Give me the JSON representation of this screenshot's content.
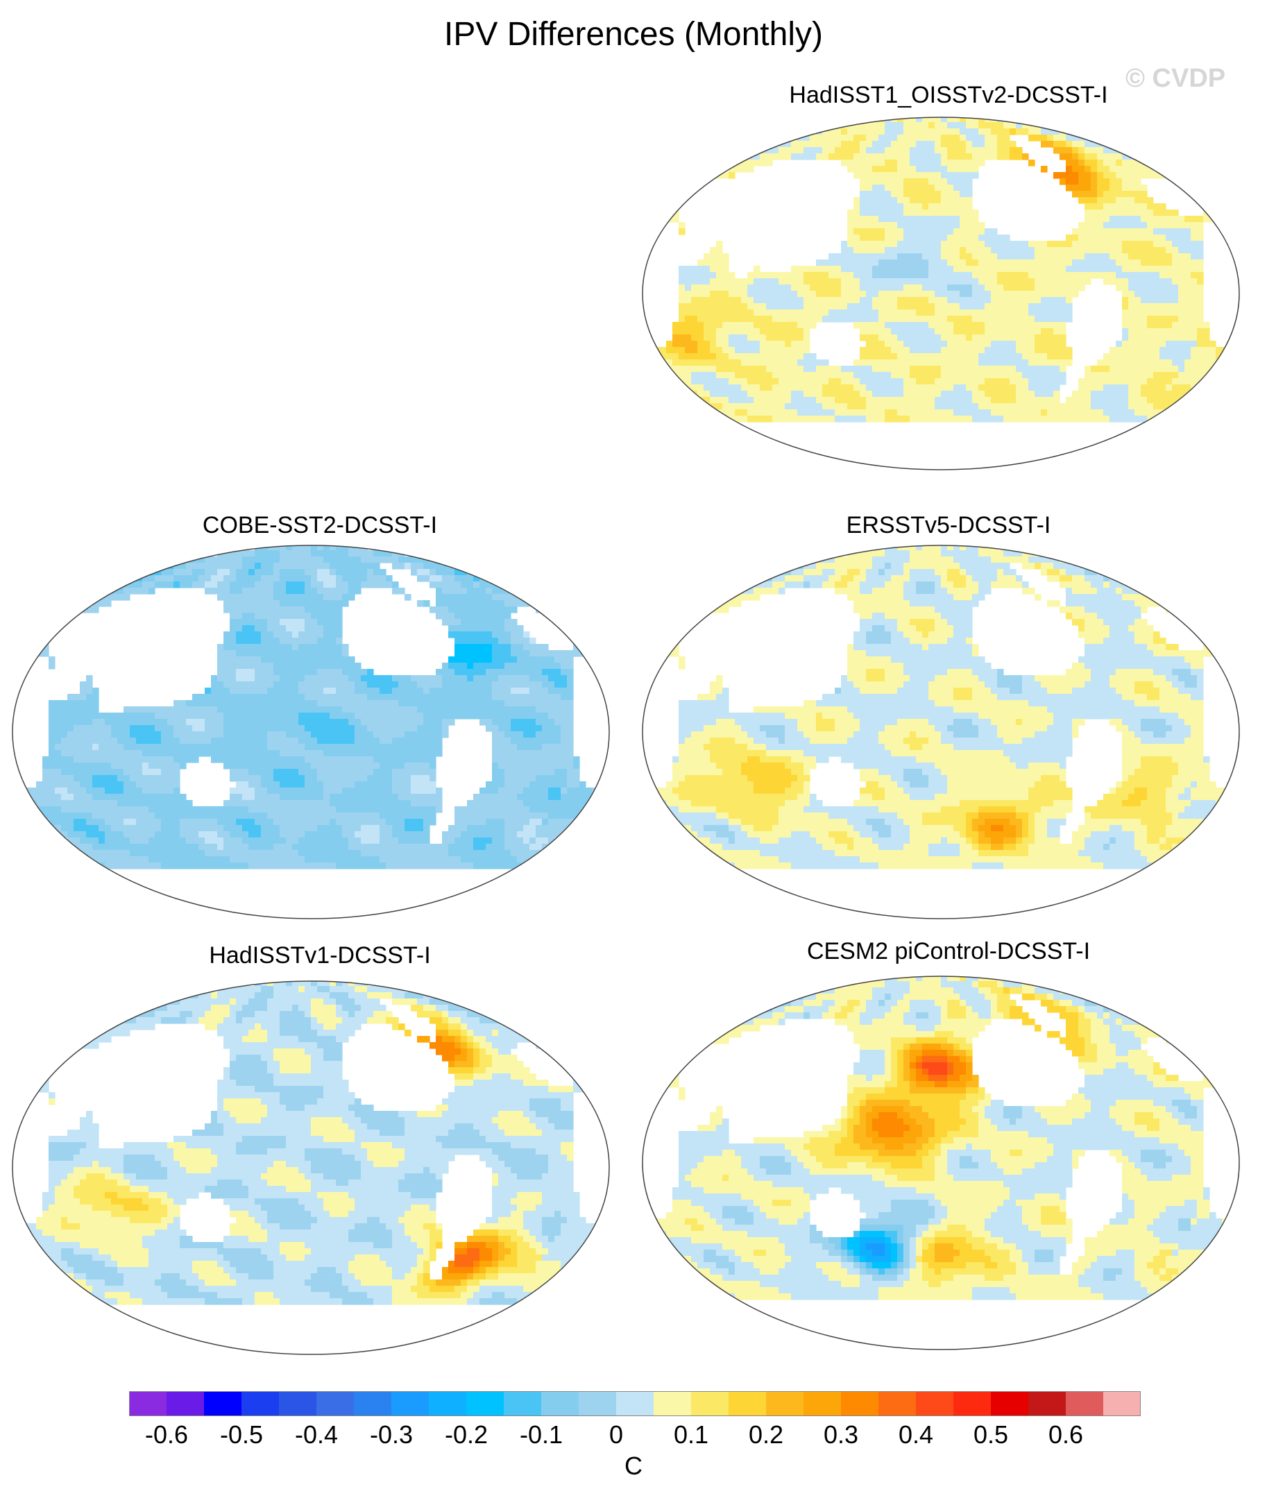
{
  "title": "IPV Differences (Monthly)",
  "watermark": "© CVDP",
  "panels": [
    {
      "id": "p1",
      "title": "HadISST1_OISSTv2-DCSST-I",
      "bias": 0.02,
      "hot": [
        {
          "lon": 305,
          "lat": 65,
          "amp": 0.28
        },
        {
          "lon": 40,
          "lat": -20,
          "amp": 0.12
        },
        {
          "lon": 180,
          "lat": 15,
          "amp": -0.08
        }
      ]
    },
    {
      "id": "p2",
      "title": "COBE-SST2-DCSST-I",
      "bias": -0.1,
      "hot": [
        {
          "lon": 190,
          "lat": 0,
          "amp": -0.05
        },
        {
          "lon": 300,
          "lat": 40,
          "amp": -0.12
        }
      ]
    },
    {
      "id": "p3",
      "title": "ERSSTv5-DCSST-I",
      "bias": 0.0,
      "hot": [
        {
          "lon": 240,
          "lat": -45,
          "amp": 0.2
        },
        {
          "lon": 80,
          "lat": -25,
          "amp": 0.15
        },
        {
          "lon": 330,
          "lat": -30,
          "amp": 0.1
        }
      ]
    },
    {
      "id": "p4",
      "title": "HadISSTv1-DCSST-I",
      "bias": -0.03,
      "hot": [
        {
          "lon": 305,
          "lat": 60,
          "amp": 0.3
        },
        {
          "lon": 310,
          "lat": -45,
          "amp": 0.35
        },
        {
          "lon": 75,
          "lat": -20,
          "amp": 0.14
        }
      ]
    },
    {
      "id": "p5",
      "title": "CESM2 piControl-DCSST-I",
      "bias": 0.0,
      "hot": [
        {
          "lon": 200,
          "lat": 45,
          "amp": 0.35
        },
        {
          "lon": 170,
          "lat": 15,
          "amp": 0.3
        },
        {
          "lon": 200,
          "lat": -45,
          "amp": 0.2
        },
        {
          "lon": 160,
          "lat": -40,
          "amp": -0.3
        },
        {
          "lon": 300,
          "lat": 70,
          "amp": 0.2
        }
      ]
    }
  ],
  "colorbar": {
    "colors": [
      "#8a2be2",
      "#6a1be8",
      "#0000ff",
      "#1a3ef0",
      "#2b55e6",
      "#3a6ee6",
      "#2a82f0",
      "#1a9cff",
      "#0fb0ff",
      "#00c2ff",
      "#4ac4f5",
      "#85cdee",
      "#9ed3f0",
      "#c2e4f6",
      "#fbf7a8",
      "#fbe864",
      "#fdd535",
      "#fdb81e",
      "#fda60a",
      "#fd8a00",
      "#fd6b12",
      "#fd4a18",
      "#fd2a10",
      "#e60000",
      "#c41818",
      "#e05c5c",
      "#f7b0b0"
    ],
    "tick_labels": [
      "-0.6",
      "-0.5",
      "-0.4",
      "-0.3",
      "-0.2",
      "-0.1",
      "0",
      "0.1",
      "0.2",
      "0.3",
      "0.4",
      "0.5",
      "0.6"
    ],
    "unit": "C"
  }
}
